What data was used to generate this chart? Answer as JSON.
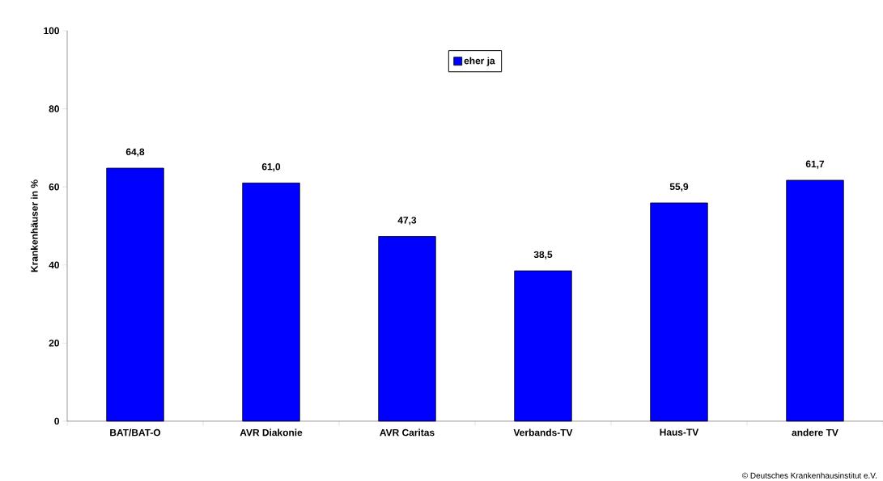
{
  "chart_data": {
    "type": "bar",
    "categories": [
      "BAT/BAT-O",
      "AVR Diakonie",
      "AVR Caritas",
      "Verbands-TV",
      "Haus-TV",
      "andere TV"
    ],
    "series": [
      {
        "name": "eher ja",
        "color": "#0000ff",
        "values": [
          64.8,
          61.0,
          47.3,
          38.5,
          55.9,
          61.7
        ],
        "value_labels": [
          "64,8",
          "61,0",
          "47,3",
          "38,5",
          "55,9",
          "61,7"
        ]
      }
    ],
    "ylabel": "Krankenhäuser in %",
    "ylim": [
      0,
      100
    ],
    "yticks": [
      0,
      20,
      40,
      60,
      80,
      100
    ],
    "legend": "top",
    "annotations": [
      "© Deutsches Krankenhausinstitut e.V."
    ]
  }
}
